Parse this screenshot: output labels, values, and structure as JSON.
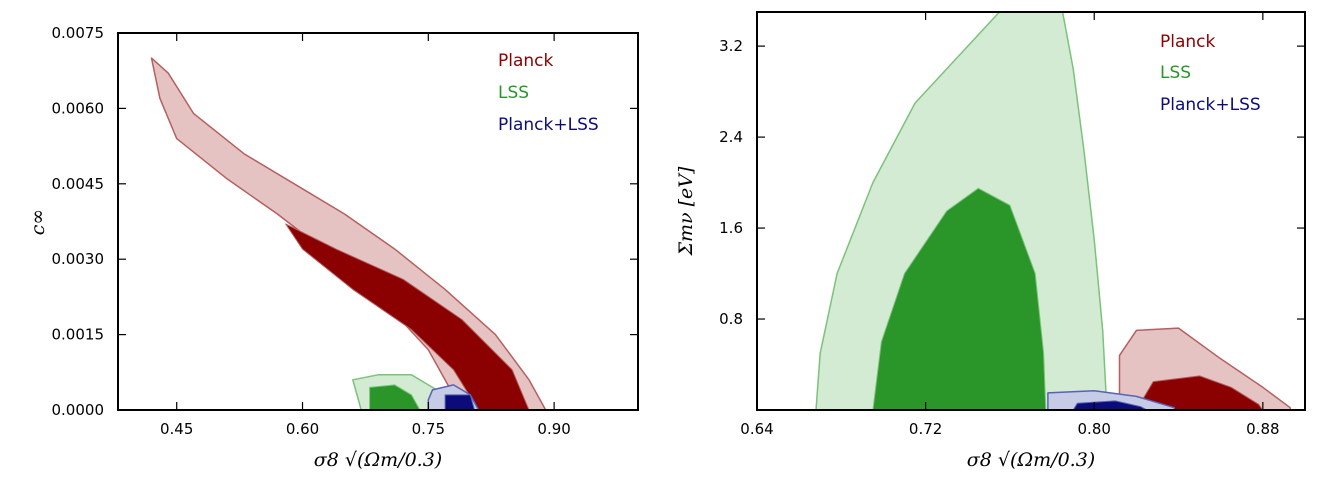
{
  "colors": {
    "planck_fill": "#8b0000",
    "planck_light": "#e6c3c3",
    "planck_edge": "#b5605f",
    "lss_fill": "#2a962a",
    "lss_light": "#d2ebd2",
    "lss_edge": "#7cc27c",
    "combo_fill": "#0b0b7a",
    "combo_light": "#c6cbe6",
    "combo_edge": "#5a62b5"
  },
  "chart_data": [
    {
      "type": "contour",
      "xlabel": "σ8 √(Ωm/0.3)",
      "ylabel": "c∞",
      "xlim": [
        0.38,
        1.0
      ],
      "ylim": [
        0.0,
        0.0075
      ],
      "xticks": [
        "0.45",
        "0.60",
        "0.75",
        "0.90"
      ],
      "xtick_values": [
        0.45,
        0.6,
        0.75,
        0.9
      ],
      "yticks": [
        "0.0000",
        "0.0015",
        "0.0030",
        "0.0045",
        "0.0060",
        "0.0075"
      ],
      "ytick_values": [
        0.0,
        0.0015,
        0.003,
        0.0045,
        0.006,
        0.0075
      ],
      "legend": [
        "Planck",
        "LSS",
        "Planck+LSS"
      ],
      "legend_loc": "top-right",
      "series": [
        {
          "name": "Planck",
          "color": "planck",
          "outer": [
            [
              0.42,
              0.007
            ],
            [
              0.44,
              0.0067
            ],
            [
              0.47,
              0.0059
            ],
            [
              0.53,
              0.0051
            ],
            [
              0.6,
              0.0044
            ],
            [
              0.65,
              0.0039
            ],
            [
              0.71,
              0.0032
            ],
            [
              0.77,
              0.0024
            ],
            [
              0.83,
              0.0015
            ],
            [
              0.87,
              0.0006
            ],
            [
              0.89,
              0.0
            ],
            [
              0.79,
              0.0
            ],
            [
              0.75,
              0.0012
            ],
            [
              0.7,
              0.0021
            ],
            [
              0.64,
              0.003
            ],
            [
              0.57,
              0.0039
            ],
            [
              0.51,
              0.0046
            ],
            [
              0.45,
              0.0054
            ],
            [
              0.43,
              0.0062
            ]
          ],
          "inner": [
            [
              0.58,
              0.0037
            ],
            [
              0.64,
              0.0032
            ],
            [
              0.72,
              0.0026
            ],
            [
              0.79,
              0.0018
            ],
            [
              0.85,
              0.0008
            ],
            [
              0.87,
              0.0
            ],
            [
              0.81,
              0.0
            ],
            [
              0.78,
              0.0008
            ],
            [
              0.73,
              0.0016
            ],
            [
              0.66,
              0.0024
            ],
            [
              0.6,
              0.0032
            ]
          ]
        },
        {
          "name": "LSS",
          "color": "lss",
          "outer": [
            [
              0.66,
              0.0006
            ],
            [
              0.69,
              0.0007
            ],
            [
              0.73,
              0.0007
            ],
            [
              0.76,
              0.0004
            ],
            [
              0.77,
              0.0
            ],
            [
              0.67,
              0.0
            ]
          ],
          "inner": [
            [
              0.68,
              0.00045
            ],
            [
              0.71,
              0.0005
            ],
            [
              0.73,
              0.0003
            ],
            [
              0.74,
              0.0
            ],
            [
              0.68,
              0.0
            ]
          ]
        },
        {
          "name": "Planck+LSS",
          "color": "combo",
          "outer": [
            [
              0.755,
              0.0004
            ],
            [
              0.78,
              0.0005
            ],
            [
              0.8,
              0.0003
            ],
            [
              0.81,
              0.0
            ],
            [
              0.75,
              0.0
            ],
            [
              0.75,
              0.0002
            ]
          ],
          "inner": [
            [
              0.77,
              0.0003
            ],
            [
              0.8,
              0.0003
            ],
            [
              0.805,
              0.0
            ],
            [
              0.77,
              0.0
            ]
          ]
        }
      ]
    },
    {
      "type": "contour",
      "xlabel": "σ8 √(Ωm/0.3)",
      "ylabel": "Σmν [eV]",
      "xlim": [
        0.64,
        0.9
      ],
      "ylim": [
        0.0,
        3.5
      ],
      "xticks": [
        "0.64",
        "0.72",
        "0.80",
        "0.88"
      ],
      "xtick_values": [
        0.64,
        0.72,
        0.8,
        0.88
      ],
      "yticks": [
        "0.8",
        "1.6",
        "2.4",
        "3.2"
      ],
      "ytick_values": [
        0.8,
        1.6,
        2.4,
        3.2
      ],
      "legend": [
        "Planck",
        "LSS",
        "Planck+LSS"
      ],
      "legend_loc": "top-right",
      "series": [
        {
          "name": "LSS",
          "color": "lss",
          "outer": [
            [
              0.668,
              0.0
            ],
            [
              0.67,
              0.5
            ],
            [
              0.678,
              1.2
            ],
            [
              0.695,
              2.0
            ],
            [
              0.715,
              2.7
            ],
            [
              0.74,
              3.2
            ],
            [
              0.755,
              3.5
            ],
            [
              0.785,
              3.5
            ],
            [
              0.79,
              3.0
            ],
            [
              0.795,
              2.3
            ],
            [
              0.8,
              1.5
            ],
            [
              0.804,
              0.7
            ],
            [
              0.806,
              0.0
            ]
          ],
          "inner": [
            [
              0.695,
              0.0
            ],
            [
              0.699,
              0.6
            ],
            [
              0.71,
              1.2
            ],
            [
              0.73,
              1.75
            ],
            [
              0.745,
              1.95
            ],
            [
              0.76,
              1.8
            ],
            [
              0.772,
              1.2
            ],
            [
              0.776,
              0.5
            ],
            [
              0.777,
              0.0
            ]
          ]
        },
        {
          "name": "Planck",
          "color": "planck",
          "outer": [
            [
              0.812,
              0.0
            ],
            [
              0.812,
              0.48
            ],
            [
              0.82,
              0.7
            ],
            [
              0.84,
              0.72
            ],
            [
              0.86,
              0.45
            ],
            [
              0.88,
              0.2
            ],
            [
              0.893,
              0.02
            ],
            [
              0.893,
              0.0
            ]
          ],
          "inner": [
            [
              0.82,
              0.0
            ],
            [
              0.828,
              0.25
            ],
            [
              0.85,
              0.3
            ],
            [
              0.865,
              0.2
            ],
            [
              0.878,
              0.05
            ],
            [
              0.88,
              0.0
            ]
          ]
        },
        {
          "name": "Planck+LSS",
          "color": "combo",
          "outer": [
            [
              0.778,
              0.0
            ],
            [
              0.778,
              0.15
            ],
            [
              0.8,
              0.17
            ],
            [
              0.82,
              0.12
            ],
            [
              0.838,
              0.02
            ],
            [
              0.838,
              0.0
            ]
          ],
          "inner": [
            [
              0.79,
              0.0
            ],
            [
              0.792,
              0.06
            ],
            [
              0.81,
              0.08
            ],
            [
              0.822,
              0.03
            ],
            [
              0.825,
              0.0
            ]
          ]
        }
      ]
    }
  ]
}
